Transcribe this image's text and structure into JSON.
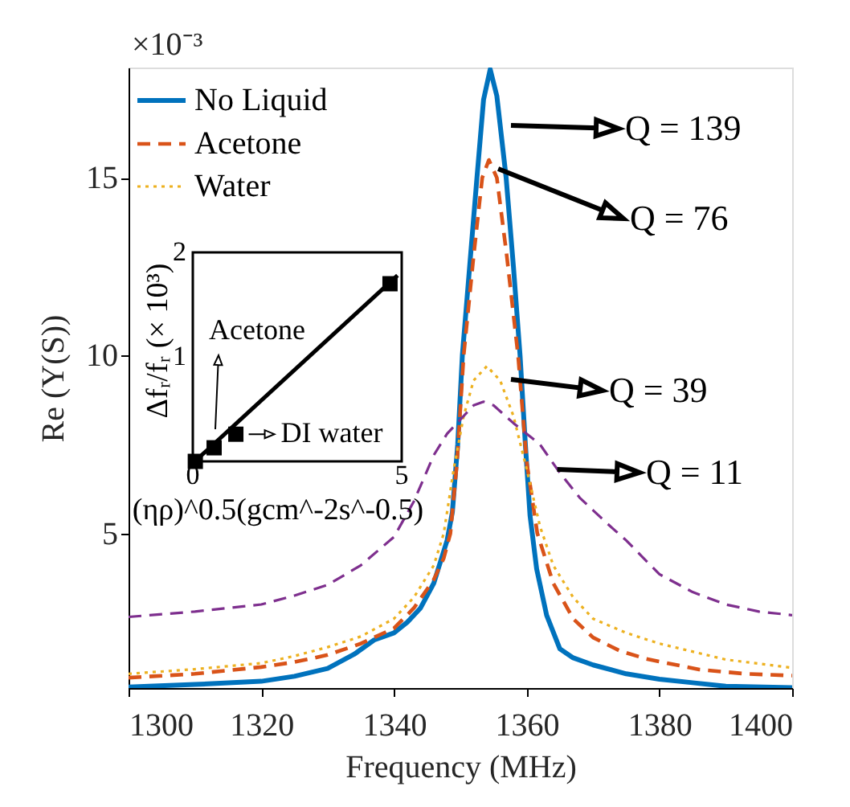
{
  "chart_data": [
    {
      "type": "line",
      "xlabel": "Frequency (MHz)",
      "ylabel": "Re (Y(S))",
      "xlim": [
        1300,
        1400
      ],
      "ylim": [
        0.65,
        18.1
      ],
      "xticks": [
        1300,
        1320,
        1340,
        1360,
        1380,
        1400
      ],
      "yticks": [
        5,
        10,
        15
      ],
      "legend": "top left",
      "annotations": [
        "×10⁻³",
        "Q = 139",
        {
          "text": "Q = 76",
          "x": 1355.7,
          "y": 15.25
        },
        "Q = 39",
        {
          "text": "Q = 11",
          "x": 1364.6,
          "y": 6.8
        }
      ],
      "series": [
        {
          "name": "No Liquid",
          "color": "#0072bd",
          "line_style": "solid",
          "x": [
            1300,
            1310,
            1320,
            1325,
            1330,
            1334,
            1337,
            1340,
            1342,
            1344,
            1346,
            1347,
            1348,
            1348.8,
            1349.6,
            1350.3,
            1351.4,
            1352.5,
            1353.5,
            1354.5,
            1355.5,
            1356.9,
            1358,
            1359,
            1359.8,
            1360.5,
            1361.5,
            1363,
            1365,
            1367,
            1370,
            1375,
            1380,
            1385,
            1390,
            1400
          ],
          "values": [
            0.68,
            0.75,
            0.84,
            0.98,
            1.2,
            1.6,
            2.0,
            2.2,
            2.5,
            2.9,
            3.6,
            4.2,
            4.8,
            5.6,
            7.5,
            10,
            12.5,
            15,
            17.2,
            18.05,
            17.3,
            15,
            12.5,
            10,
            7.5,
            5.5,
            4.0,
            2.7,
            1.75,
            1.5,
            1.3,
            1.05,
            0.9,
            0.8,
            0.7,
            0.66
          ]
        },
        {
          "name": "Acetone",
          "color": "#d95319",
          "line_style": "dashed",
          "x": [
            1300,
            1310,
            1320,
            1325,
            1330,
            1335,
            1340,
            1343,
            1346,
            1347.5,
            1348.5,
            1349.5,
            1350.5,
            1352,
            1353.3,
            1354.3,
            1355.5,
            1357,
            1358.7,
            1360,
            1361.6,
            1364,
            1367,
            1370,
            1374,
            1378,
            1386,
            1393,
            1400
          ],
          "values": [
            0.94,
            1.05,
            1.24,
            1.38,
            1.58,
            1.9,
            2.33,
            2.9,
            3.7,
            4.3,
            5.0,
            7.0,
            10,
            12.8,
            15,
            15.5,
            15,
            12.8,
            10,
            7.0,
            5.0,
            3.6,
            2.6,
            2.07,
            1.7,
            1.47,
            1.17,
            1.05,
            1.0
          ]
        },
        {
          "name": "Water",
          "color": "#edb120",
          "line_style": "dotted",
          "x": [
            1300,
            1310,
            1320,
            1325,
            1330,
            1335,
            1340,
            1343,
            1346,
            1347.5,
            1349,
            1350.5,
            1352,
            1354,
            1356,
            1358,
            1360,
            1362,
            1364,
            1367,
            1370,
            1375,
            1380,
            1390,
            1400
          ],
          "values": [
            1.05,
            1.18,
            1.35,
            1.55,
            1.8,
            2.1,
            2.6,
            3.2,
            4.1,
            5.0,
            6.8,
            8.3,
            9.3,
            9.7,
            9.3,
            8.3,
            6.8,
            5.2,
            4.1,
            3.2,
            2.6,
            2.2,
            1.9,
            1.45,
            1.22
          ]
        },
        {
          "color": "#7e2f8e",
          "line_style": "dashed",
          "x": [
            1300,
            1310,
            1320,
            1325,
            1330,
            1335,
            1340,
            1343,
            1346,
            1348,
            1350,
            1352,
            1353.5,
            1355,
            1358,
            1360,
            1362,
            1365,
            1368,
            1370,
            1372,
            1375,
            1380,
            1385,
            1390,
            1395,
            1400
          ],
          "values": [
            2.65,
            2.8,
            3.0,
            3.25,
            3.55,
            4.1,
            4.9,
            5.9,
            7.2,
            7.8,
            8.2,
            8.6,
            8.7,
            8.6,
            8.1,
            7.8,
            7.5,
            6.7,
            6.0,
            5.65,
            5.3,
            4.8,
            3.85,
            3.35,
            3.0,
            2.8,
            2.7
          ]
        }
      ]
    },
    {
      "type": "scatter",
      "xlabel": "(ηρ)^0.5(gcm^-2s^-0.5)",
      "ylabel": "Δfᵣ/fᵣ (× 10³)",
      "xlim": [
        0,
        5
      ],
      "ylim": [
        0,
        2
      ],
      "xticks": [
        0,
        5
      ],
      "yticks": [
        1,
        2
      ],
      "annotations": [
        "Acetone",
        {
          "text": "DI water",
          "x": 1.03,
          "y": 0.26
        }
      ],
      "series": [
        {
          "type": "scatter",
          "color": "#000000",
          "marker": "square",
          "x": [
            0.06,
            0.51,
            1.03,
            4.72
          ],
          "values": [
            0.0,
            0.13,
            0.26,
            1.7
          ]
        },
        {
          "type": "line",
          "color": "#000000",
          "line_style": "solid",
          "x": [
            0.05,
            4.9
          ],
          "values": [
            0.0,
            1.78
          ]
        }
      ]
    }
  ]
}
